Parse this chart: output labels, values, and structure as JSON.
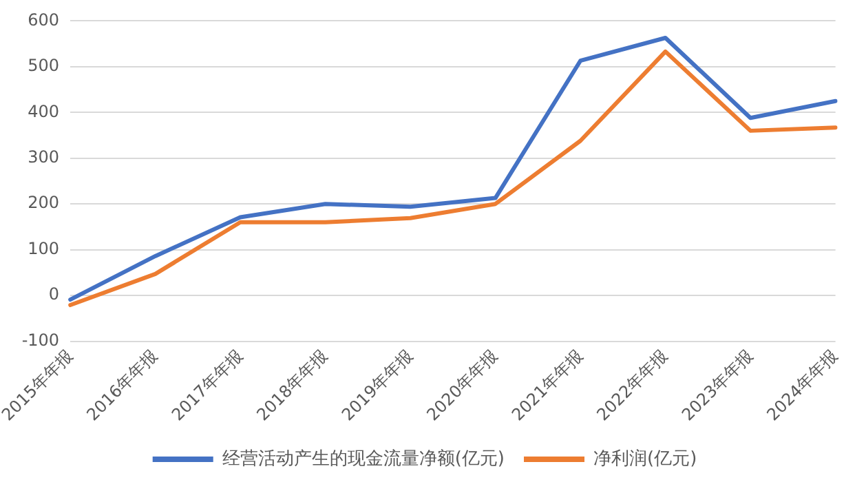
{
  "chart_data": {
    "type": "line",
    "categories": [
      "2015年年报",
      "2016年年报",
      "2017年年报",
      "2018年年报",
      "2019年年报",
      "2020年年报",
      "2021年年报",
      "2022年年报",
      "2023年年报",
      "2024年年报"
    ],
    "series": [
      {
        "name": "经营活动产生的现金流量净额(亿元)",
        "color": "#4472c4",
        "values": [
          -9,
          86,
          171,
          200,
          194,
          213,
          513,
          563,
          388,
          425
        ]
      },
      {
        "name": "净利润(亿元)",
        "color": "#ed7d31",
        "values": [
          -21,
          47,
          160,
          160,
          169,
          200,
          338,
          533,
          360,
          367
        ]
      }
    ],
    "ylim": [
      -100,
      600
    ],
    "yticks": [
      -100,
      0,
      100,
      200,
      300,
      400,
      500,
      600
    ],
    "grid": "y",
    "legend": "bottom",
    "marker": "none",
    "line_style": "solid"
  }
}
